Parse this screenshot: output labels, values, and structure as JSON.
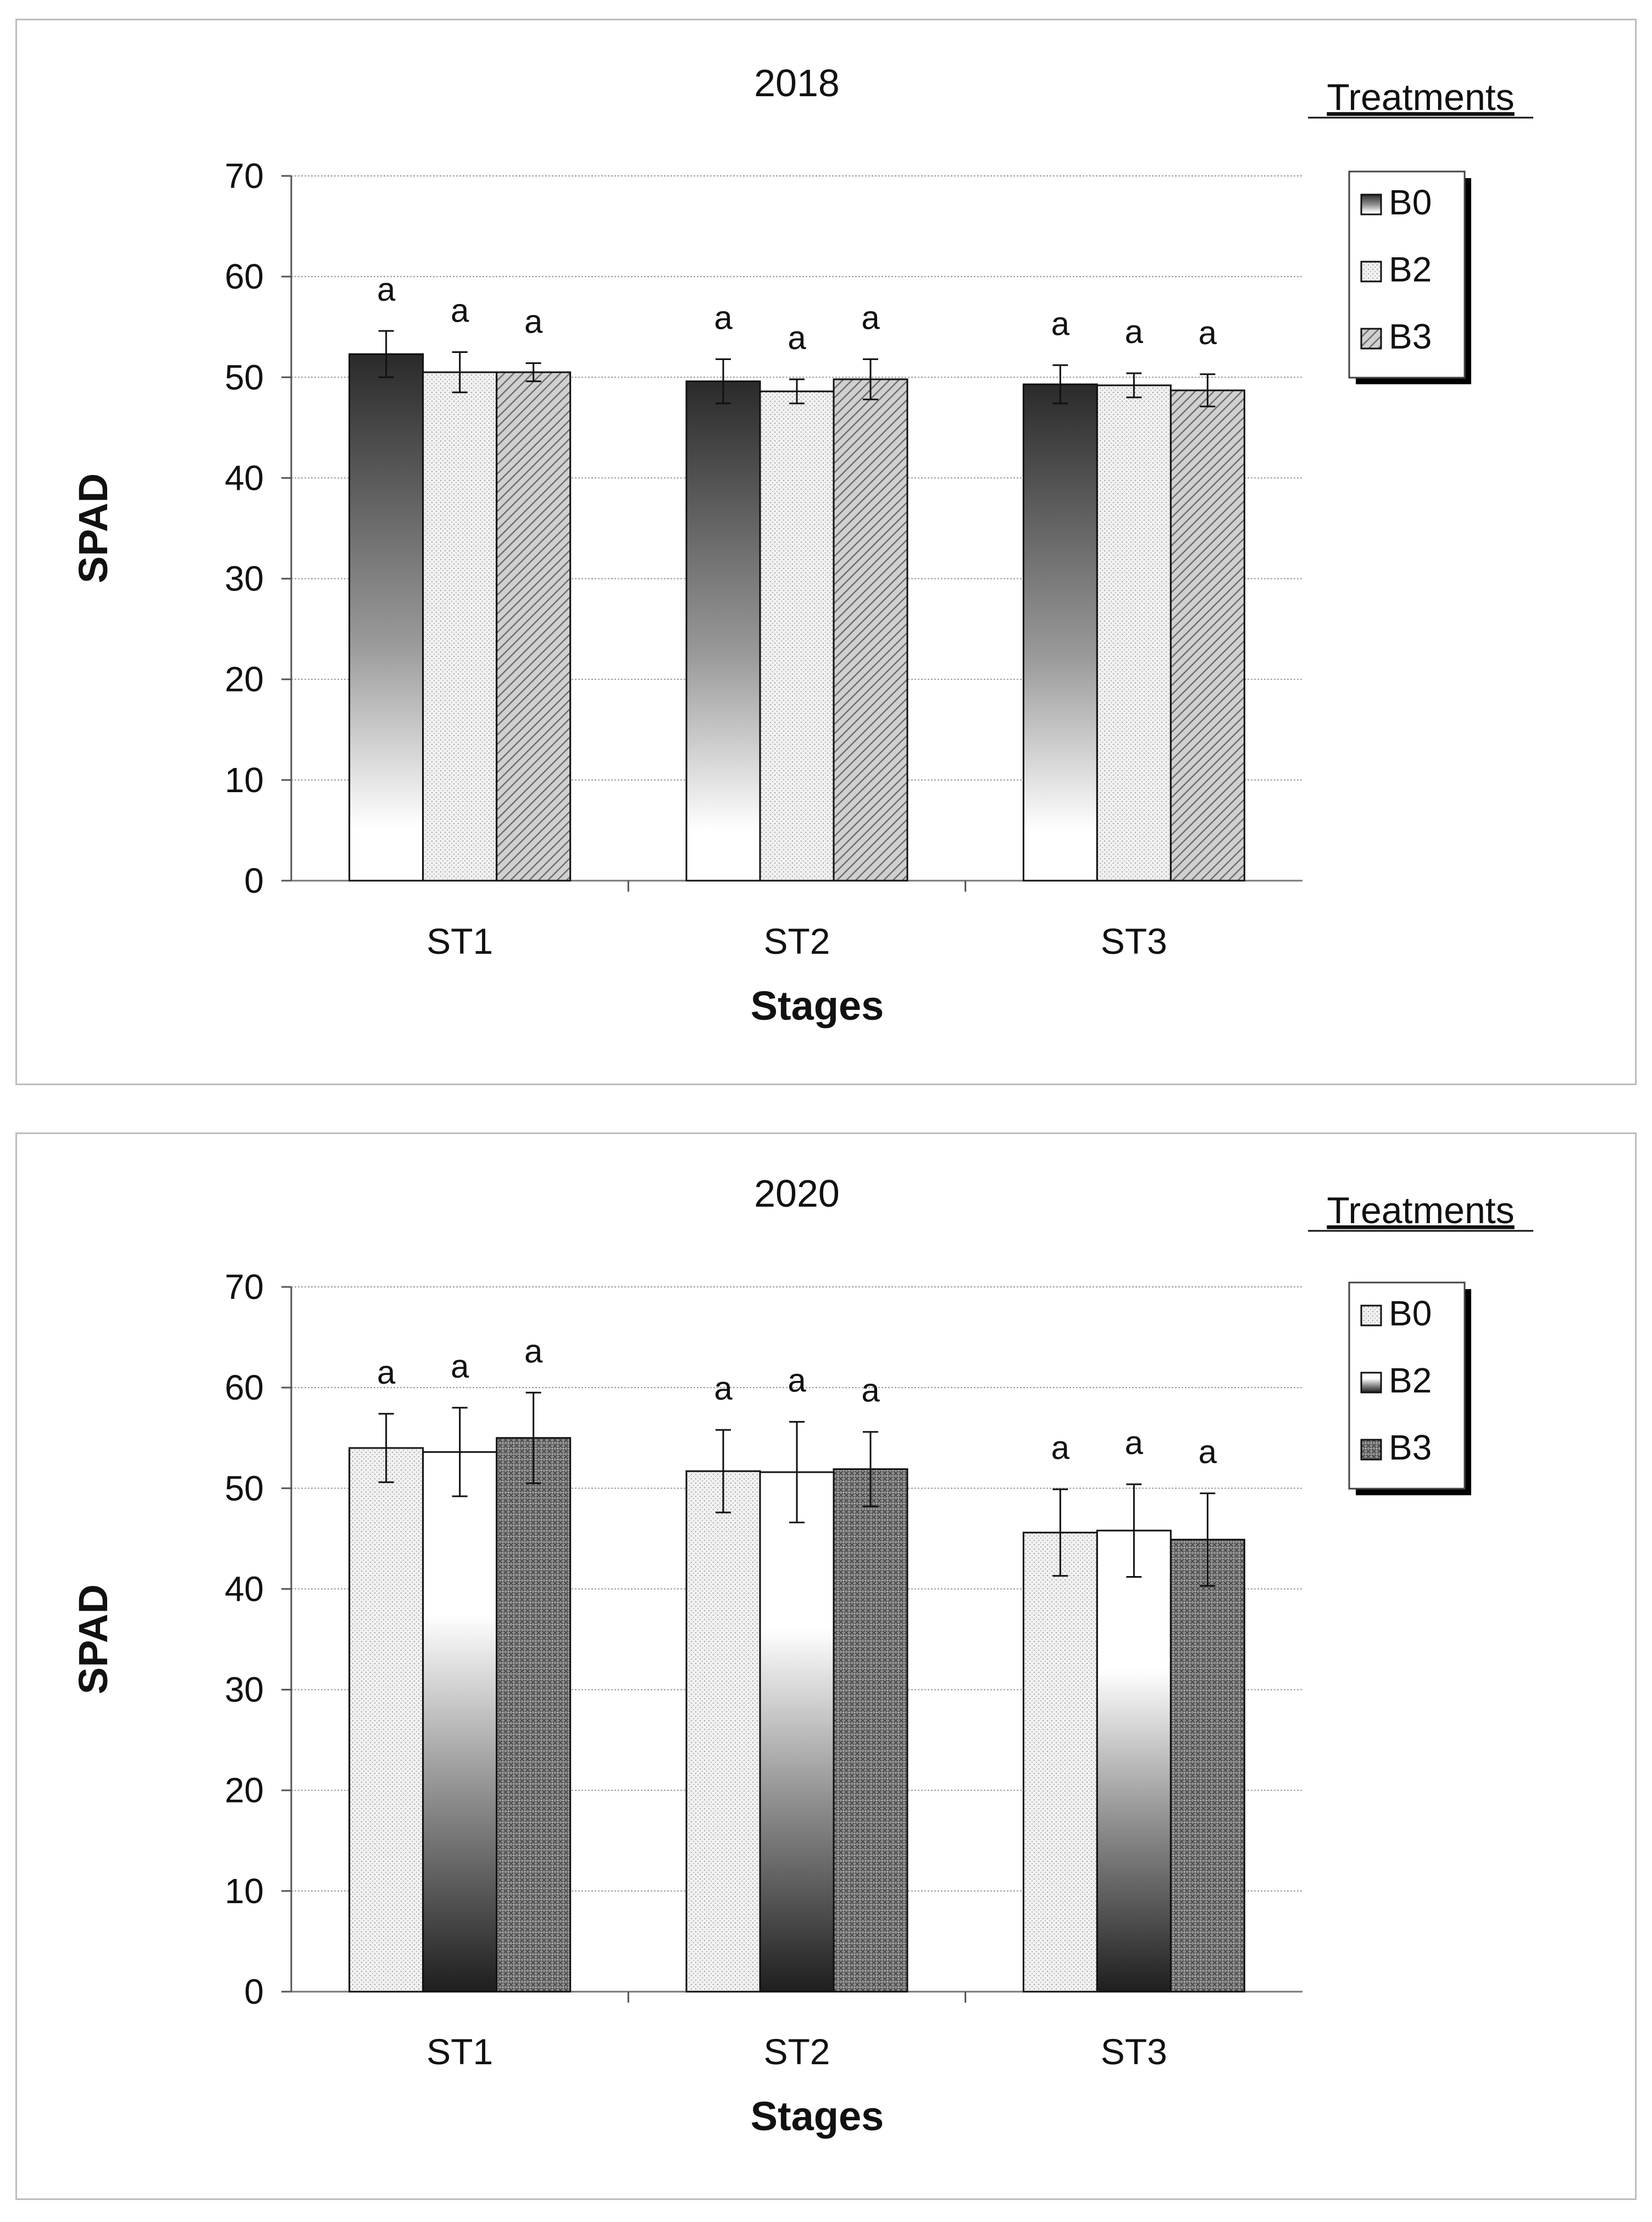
{
  "chart_data": [
    {
      "type": "bar",
      "title": "2018",
      "xlabel": "Stages",
      "ylabel": "SPAD",
      "ylim": [
        0,
        70
      ],
      "yticks": [
        0,
        10,
        20,
        30,
        40,
        50,
        60,
        70
      ],
      "categories": [
        "ST1",
        "ST2",
        "ST3"
      ],
      "legend_title": "Treatments",
      "legend_position": "top-right",
      "series": [
        {
          "name": "B0",
          "values": [
            52.3,
            49.6,
            49.3
          ],
          "errors": [
            2.3,
            2.2,
            1.9
          ],
          "labels": [
            "a",
            "a",
            "a"
          ],
          "fill": "gradient-dark-top"
        },
        {
          "name": "B2",
          "values": [
            50.5,
            48.6,
            49.2
          ],
          "errors": [
            2.0,
            1.2,
            1.2
          ],
          "labels": [
            "a",
            "a",
            "a"
          ],
          "fill": "dotted-light"
        },
        {
          "name": "B3",
          "values": [
            50.5,
            49.8,
            48.7
          ],
          "errors": [
            0.9,
            2.0,
            1.6
          ],
          "labels": [
            "a",
            "a",
            "a"
          ],
          "fill": "diagonal-hatch"
        }
      ]
    },
    {
      "type": "bar",
      "title": "2020",
      "xlabel": "Stages",
      "ylabel": "SPAD",
      "ylim": [
        0,
        70
      ],
      "yticks": [
        0,
        10,
        20,
        30,
        40,
        50,
        60,
        70
      ],
      "categories": [
        "ST1",
        "ST2",
        "ST3"
      ],
      "legend_title": "Treatments",
      "legend_position": "top-right",
      "series": [
        {
          "name": "B0",
          "values": [
            54.0,
            51.7,
            45.6
          ],
          "errors": [
            3.4,
            4.1,
            4.3
          ],
          "labels": [
            "a",
            "a",
            "a"
          ],
          "fill": "dotted-light"
        },
        {
          "name": "B2",
          "values": [
            53.6,
            51.6,
            45.8
          ],
          "errors": [
            4.4,
            5.0,
            4.6
          ],
          "labels": [
            "a",
            "a",
            "a"
          ],
          "fill": "gradient-dark-bottom"
        },
        {
          "name": "B3",
          "values": [
            55.0,
            51.9,
            44.9
          ],
          "errors": [
            4.5,
            3.7,
            4.6
          ],
          "labels": [
            "a",
            "a",
            "a"
          ],
          "fill": "crosshatch-dark"
        }
      ]
    }
  ]
}
